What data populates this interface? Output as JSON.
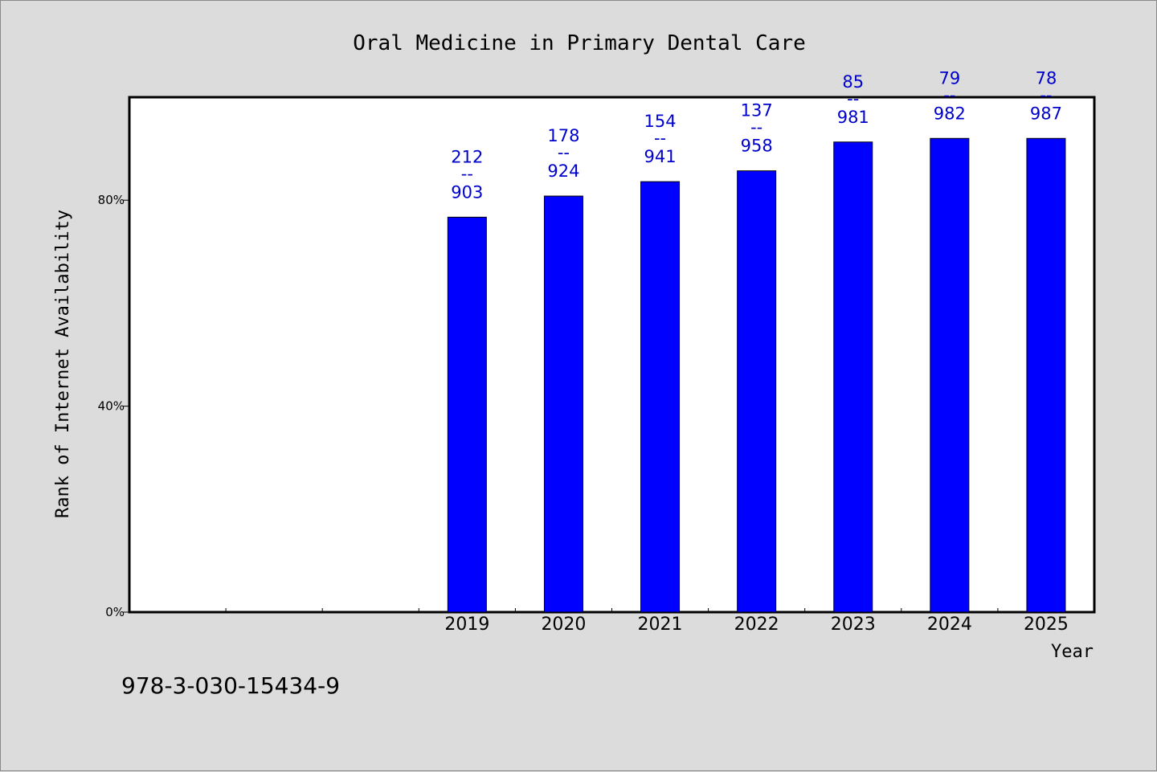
{
  "chart_data": {
    "type": "bar",
    "title": "Oral Medicine in Primary Dental Care",
    "xlabel": "Year",
    "ylabel": "Rank of Internet Availability",
    "categories": [
      "",
      "",
      "",
      "2019",
      "2020",
      "2021",
      "2022",
      "2023",
      "2024",
      "2025"
    ],
    "values": [
      null,
      null,
      null,
      76.7,
      80.8,
      83.6,
      85.7,
      91.3,
      92.0,
      92.0
    ],
    "bar_labels": [
      null,
      null,
      null,
      {
        "top": "212",
        "sep": "--",
        "bottom": "903"
      },
      {
        "top": "178",
        "sep": "--",
        "bottom": "924"
      },
      {
        "top": "154",
        "sep": "--",
        "bottom": "941"
      },
      {
        "top": "137",
        "sep": "--",
        "bottom": "958"
      },
      {
        "top": "85",
        "sep": "--",
        "bottom": "981"
      },
      {
        "top": "79",
        "sep": "--",
        "bottom": "982"
      },
      {
        "top": "78",
        "sep": "--",
        "bottom": "987"
      }
    ],
    "yticks": [
      0,
      40,
      80
    ],
    "ytick_labels": [
      "0%",
      "40%",
      "80%"
    ],
    "ylim": [
      0,
      100
    ],
    "grid": false,
    "bar_color": "#0000ff",
    "label_color": "#0000cc",
    "plot_background": "#ffffff",
    "page_background": "#dcdcdc"
  },
  "footer": {
    "isbn": "978-3-030-15434-9"
  }
}
